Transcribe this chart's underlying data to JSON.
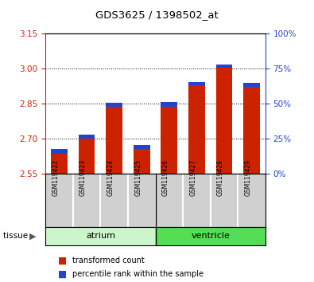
{
  "title": "GDS3625 / 1398502_at",
  "samples": [
    "GSM119422",
    "GSM119423",
    "GSM119424",
    "GSM119425",
    "GSM119426",
    "GSM119427",
    "GSM119428",
    "GSM119429"
  ],
  "baseline": 2.55,
  "red_tops": [
    2.635,
    2.698,
    2.838,
    2.655,
    2.838,
    2.928,
    3.003,
    2.922
  ],
  "blue_heights": [
    0.02,
    0.018,
    0.016,
    0.018,
    0.02,
    0.016,
    0.016,
    0.016
  ],
  "ylim_left": [
    2.55,
    3.15
  ],
  "yticks_left": [
    2.55,
    2.7,
    2.85,
    3.0,
    3.15
  ],
  "yticks_right": [
    0,
    25,
    50,
    75,
    100
  ],
  "ylim_right": [
    0,
    100
  ],
  "bar_color_red": "#cc2200",
  "bar_color_blue": "#2244cc",
  "bar_width": 0.6,
  "plot_bg": "#ffffff",
  "left_axis_color": "#cc2200",
  "right_axis_color": "#2244cc",
  "sample_box_color": "#d0d0d0",
  "atrium_color": "#ccf5cc",
  "ventricle_color": "#55dd55"
}
